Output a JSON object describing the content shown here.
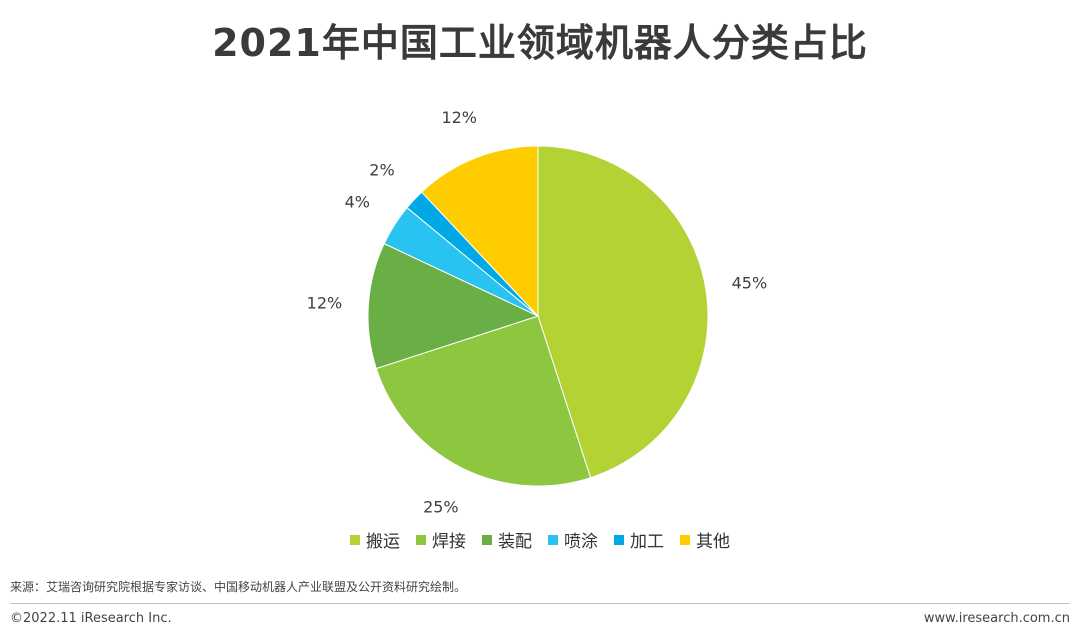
{
  "chart_data": {
    "type": "pie",
    "title": "2021年中国工业领域机器人分类占比",
    "categories": [
      "搬运",
      "焊接",
      "装配",
      "喷涂",
      "加工",
      "其他"
    ],
    "values": [
      45,
      25,
      12,
      4,
      2,
      12
    ],
    "labels": [
      "45%",
      "25%",
      "12%",
      "4%",
      "2%",
      "12%"
    ],
    "colors": [
      "#b3d335",
      "#8dc63f",
      "#6aaf45",
      "#28c3f0",
      "#00a9e6",
      "#ffcc00"
    ],
    "start": "12 o'clock",
    "direction": "clockwise",
    "legend_position": "bottom"
  },
  "footer": {
    "source": "来源：艾瑞咨询研究院根据专家访谈、中国移动机器人产业联盟及公开资料研究绘制。",
    "copyright": "©2022.11 iResearch Inc.",
    "website": "www.iresearch.com.cn"
  }
}
